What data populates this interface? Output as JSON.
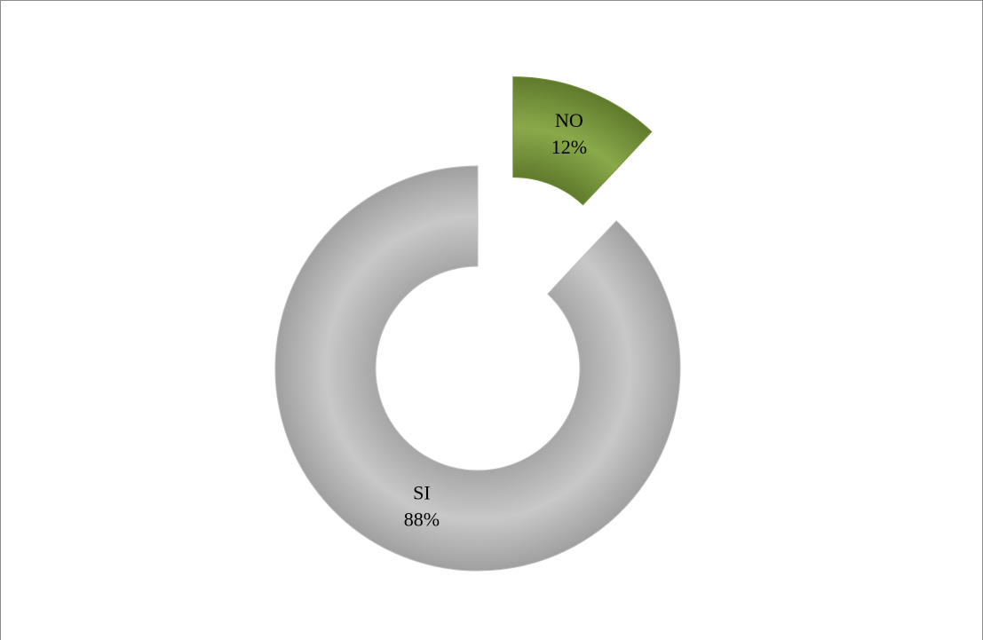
{
  "chart_data": {
    "type": "doughnut",
    "categories": [
      "NO",
      "SI"
    ],
    "values": [
      12,
      88
    ],
    "value_labels": [
      "12%",
      "88%"
    ],
    "colors": [
      "#77933c",
      "#bfbfbf"
    ],
    "explode": [
      true,
      false
    ]
  }
}
